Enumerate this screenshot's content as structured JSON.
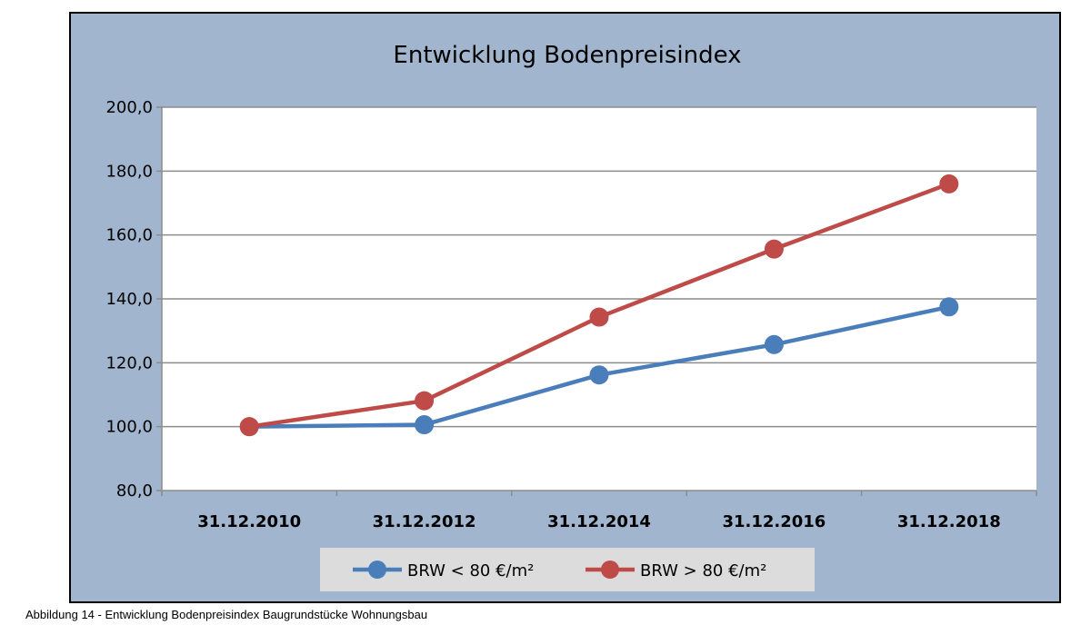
{
  "caption": "Abbildung 14 - Entwicklung Bodenpreisindex Baugrundstücke Wohnungsbau",
  "chart_data": {
    "type": "line",
    "title": "Entwicklung Bodenpreisindex",
    "xlabel": "",
    "ylabel": "",
    "categories": [
      "31.12.2010",
      "31.12.2012",
      "31.12.2014",
      "31.12.2016",
      "31.12.2018"
    ],
    "ylim": [
      80,
      200
    ],
    "yticks": [
      80,
      100,
      120,
      140,
      160,
      180,
      200
    ],
    "ytick_labels": [
      "80,0",
      "100,0",
      "120,0",
      "140,0",
      "160,0",
      "180,0",
      "200,0"
    ],
    "grid": true,
    "legend_position": "bottom",
    "series": [
      {
        "name": "BRW < 80 €/m²",
        "color": "#4a7ebb",
        "values": [
          100.0,
          100.6,
          116.2,
          125.7,
          137.5
        ]
      },
      {
        "name": "BRW > 80 €/m²",
        "color": "#be4b48",
        "values": [
          100.0,
          108.1,
          134.3,
          155.6,
          176.0
        ]
      }
    ]
  }
}
